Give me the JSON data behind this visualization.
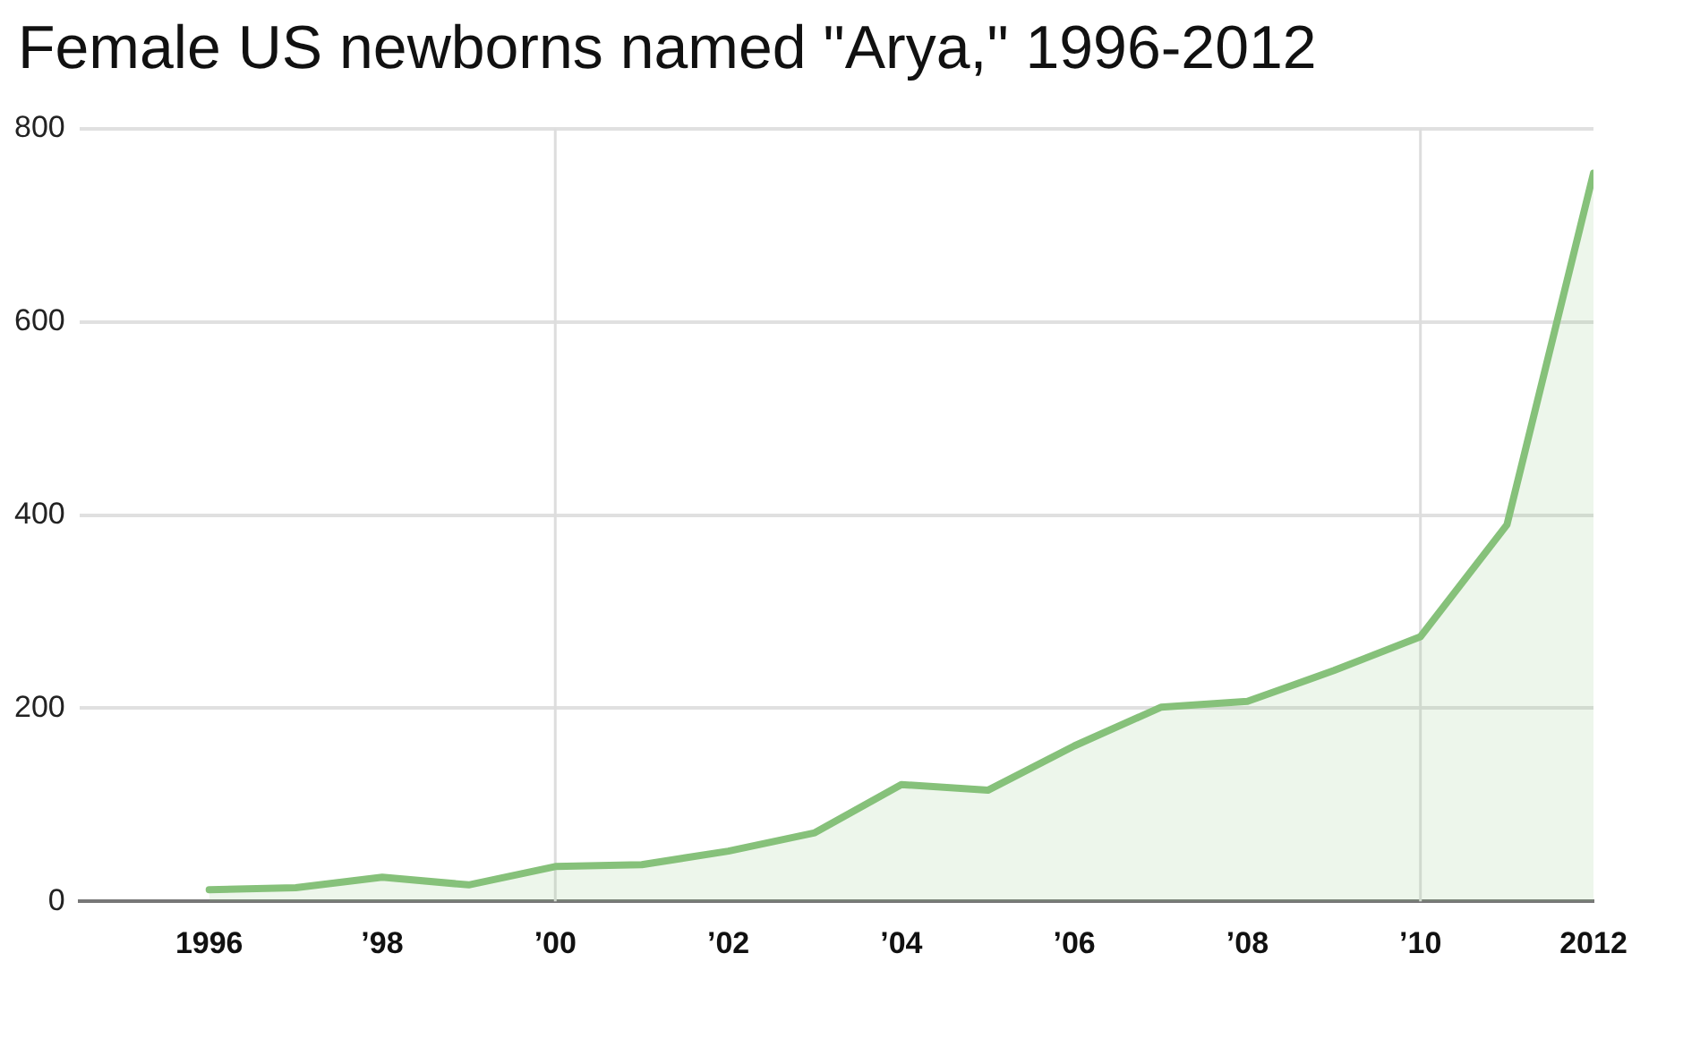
{
  "chart_data": {
    "type": "area",
    "title": "Female US newborns named \"Arya,\" 1996-2012",
    "x": [
      1996,
      1997,
      1998,
      1999,
      2000,
      2001,
      2002,
      2003,
      2004,
      2005,
      2006,
      2007,
      2008,
      2009,
      2010,
      2011,
      2012
    ],
    "series": [
      {
        "color": "#86c17a",
        "values": [
          12,
          14,
          25,
          17,
          36,
          38,
          52,
          71,
          121,
          115,
          161,
          201,
          207,
          239,
          274,
          390,
          754
        ]
      }
    ],
    "xlim": [
      1994.5,
      2012
    ],
    "xticks": [
      {
        "value": 1996,
        "label": "1996"
      },
      {
        "value": 1998,
        "label": "’98"
      },
      {
        "value": 2000,
        "label": "’00"
      },
      {
        "value": 2002,
        "label": "’02"
      },
      {
        "value": 2004,
        "label": "’04"
      },
      {
        "value": 2006,
        "label": "’06"
      },
      {
        "value": 2008,
        "label": "’08"
      },
      {
        "value": 2010,
        "label": "’10"
      },
      {
        "value": 2012,
        "label": "2012"
      }
    ],
    "ylim": [
      0,
      800
    ],
    "yticks": [
      0,
      200,
      400,
      600,
      800
    ],
    "grid": "y",
    "legend": false,
    "marker": "none",
    "line_style": "solid",
    "ref_lines": [
      {
        "axis": "x",
        "value": 2000,
        "color": "#dddddd"
      },
      {
        "axis": "x",
        "value": 2010,
        "color": "#dddddd"
      }
    ]
  }
}
